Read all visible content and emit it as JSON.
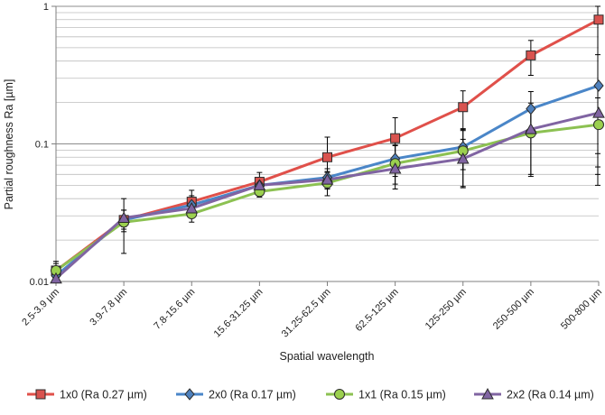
{
  "chart_data": {
    "type": "line",
    "xlabel": "Spatial wavelength",
    "ylabel": "Partial roughness Ra [µm]",
    "y_scale": "log",
    "ylim": [
      0.01,
      1
    ],
    "y_tick_labels": [
      "0.01",
      "0.1",
      "1"
    ],
    "grid": "horizontal minor and major",
    "legend_position": "bottom",
    "categories": [
      "2.5-3.9 µm",
      "3.9-7.8 µm",
      "7.8-15.6 µm",
      "15.6-31.25 µm",
      "31.25-62.5 µm",
      "62.5-125 µm",
      "125-250 µm",
      "250-500 µm",
      "500-800 µm"
    ],
    "series": [
      {
        "name": "1x0 (Ra 0.27 µm)",
        "marker": "square",
        "color": "#E0504A",
        "marker_fill": "#D9534F",
        "values": [
          0.012,
          0.028,
          0.038,
          0.053,
          0.08,
          0.11,
          0.185,
          0.44,
          0.8
        ],
        "errors": [
          0.002,
          0.012,
          0.008,
          0.009,
          0.032,
          0.045,
          0.058,
          0.125,
          0.75
        ]
      },
      {
        "name": "2x0 (Ra 0.17 µm)",
        "marker": "diamond",
        "color": "#4A86C8",
        "marker_fill": "#4F81BD",
        "values": [
          0.011,
          0.028,
          0.036,
          0.05,
          0.057,
          0.078,
          0.095,
          0.18,
          0.265
        ],
        "errors": [
          0.0015,
          0.005,
          0.006,
          0.006,
          0.009,
          0.02,
          0.03,
          0.06,
          0.18
        ]
      },
      {
        "name": "1x1 (Ra 0.15 µm)",
        "marker": "circle",
        "color": "#8CC152",
        "marker_fill": "#9BD04F",
        "values": [
          0.012,
          0.027,
          0.031,
          0.045,
          0.052,
          0.072,
          0.089,
          0.12,
          0.138
        ],
        "errors": [
          0.0015,
          0.003,
          0.004,
          0.004,
          0.01,
          0.025,
          0.04,
          0.06,
          0.078
        ]
      },
      {
        "name": "2x2 (Ra 0.14 µm)",
        "marker": "triangle",
        "color": "#8064A2",
        "marker_fill": "#8064A2",
        "values": [
          0.0105,
          0.029,
          0.034,
          0.05,
          0.055,
          0.066,
          0.078,
          0.128,
          0.168
        ],
        "errors": [
          0.0015,
          0.004,
          0.005,
          0.006,
          0.008,
          0.015,
          0.03,
          0.07,
          0.1
        ]
      }
    ]
  }
}
